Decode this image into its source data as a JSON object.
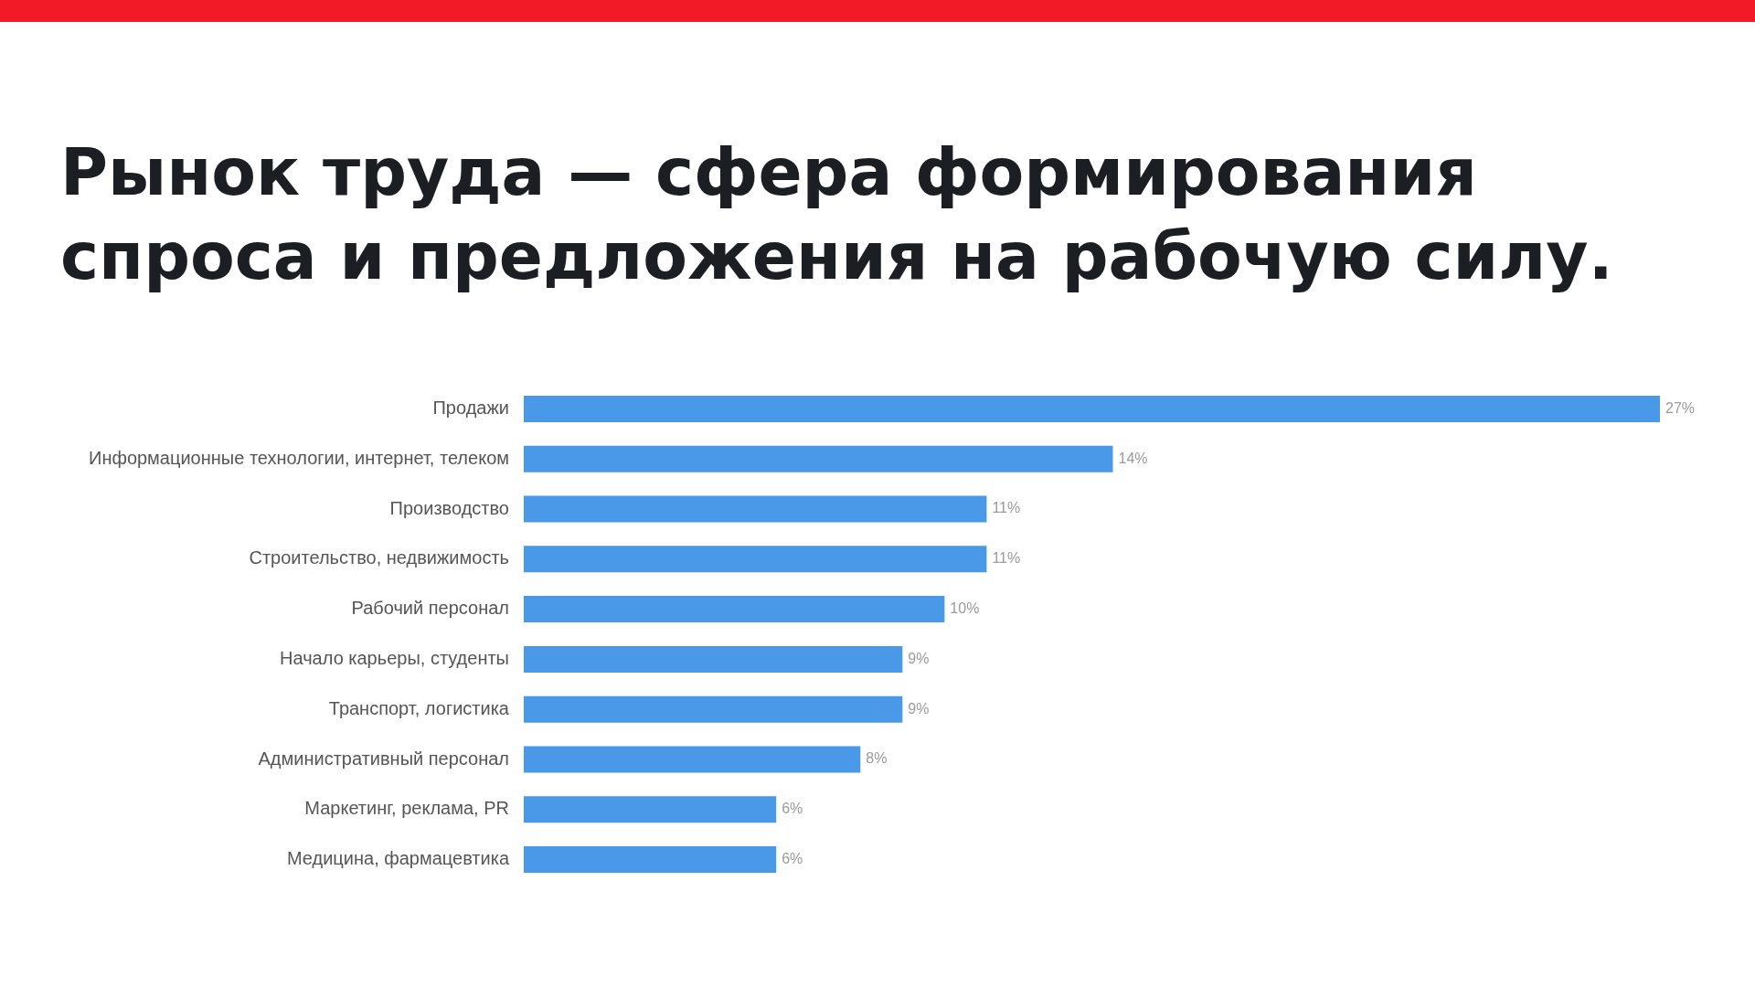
{
  "chart_data": {
    "type": "bar",
    "orientation": "horizontal",
    "title": "Рынок труда — сфера формирования спроса и предложения на рабочую силу.",
    "categories": [
      "Продажи",
      "Информационные технологии, интернет, телеком",
      "Производство",
      "Строительство, недвижимость",
      "Рабочий персонал",
      "Начало карьеры, студенты",
      "Транспорт, логистика",
      "Административный персонал",
      "Маркетинг, реклама, PR",
      "Медицина, фармацевтика"
    ],
    "values": [
      27,
      14,
      11,
      11,
      10,
      9,
      9,
      8,
      6,
      6
    ],
    "value_labels": [
      "27%",
      "14%",
      "11%",
      "11%",
      "10%",
      "9%",
      "9%",
      "8%",
      "6%",
      "6%"
    ],
    "color": "#4a98e8",
    "xlim": [
      0,
      27
    ],
    "grid": false,
    "legend": false,
    "tick_labels": "y"
  }
}
